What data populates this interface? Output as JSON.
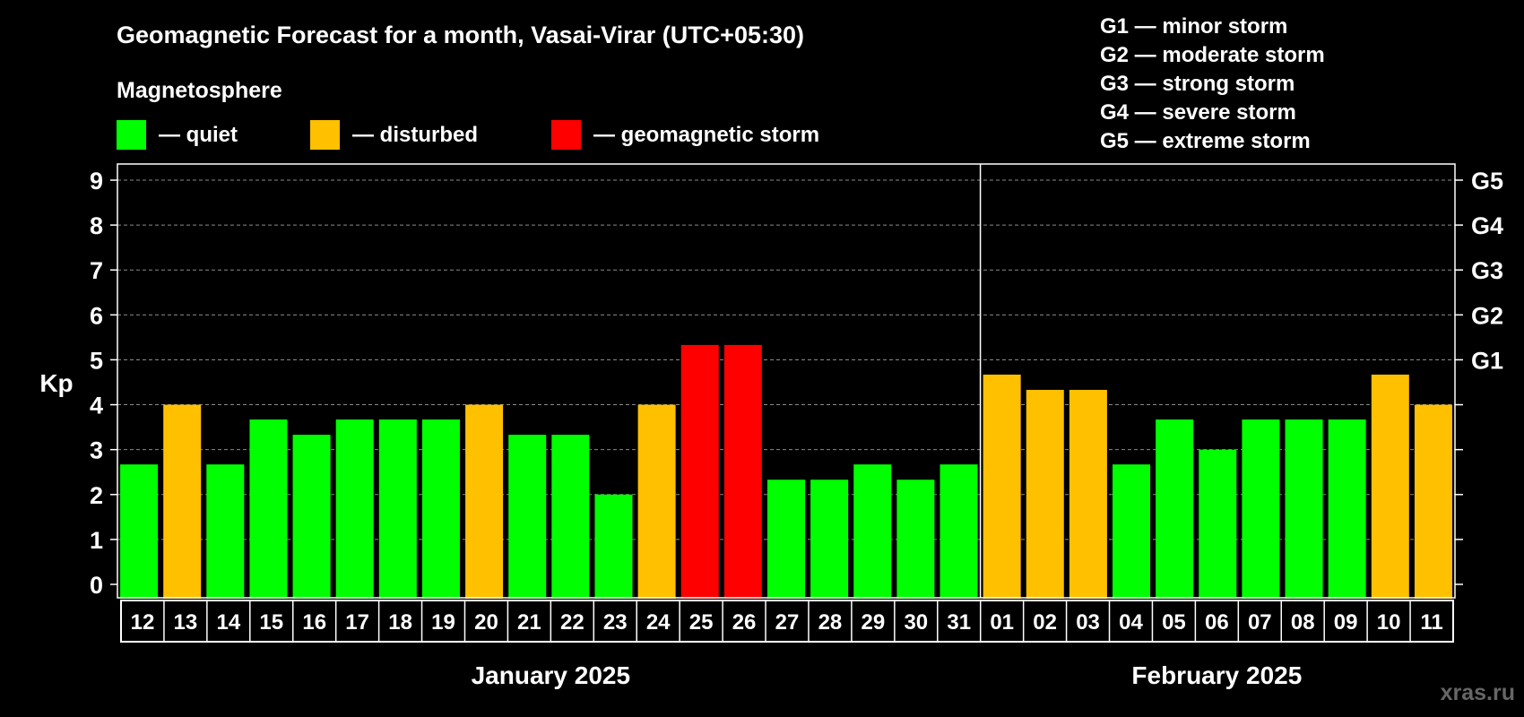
{
  "chart_data": {
    "type": "bar",
    "title": "Geomagnetic Forecast for a month, Vasai-Virar (UTC+05:30)",
    "legend_heading": "Magnetosphere",
    "legend": [
      {
        "label": "— quiet",
        "color": "#00ff00"
      },
      {
        "label": "— disturbed",
        "color": "#ffc000"
      },
      {
        "label": "— geomagnetic storm",
        "color": "#ff0000"
      }
    ],
    "storm_scale": [
      "G1 — minor storm",
      "G2 — moderate storm",
      "G3 — strong storm",
      "G4 — severe storm",
      "G5 — extreme storm"
    ],
    "ylabel": "Kp",
    "ylim": [
      0,
      9
    ],
    "yticks": [
      "0",
      "1",
      "2",
      "3",
      "4",
      "5",
      "6",
      "7",
      "8",
      "9"
    ],
    "right_ticks": [
      {
        "label": "G1",
        "value": 5
      },
      {
        "label": "G2",
        "value": 6
      },
      {
        "label": "G3",
        "value": 7
      },
      {
        "label": "G4",
        "value": 8
      },
      {
        "label": "G5",
        "value": 9
      }
    ],
    "grid": true,
    "categories": [
      "12",
      "13",
      "14",
      "15",
      "16",
      "17",
      "18",
      "19",
      "20",
      "21",
      "22",
      "23",
      "24",
      "25",
      "26",
      "27",
      "28",
      "29",
      "30",
      "31",
      "01",
      "02",
      "03",
      "04",
      "05",
      "06",
      "07",
      "08",
      "09",
      "10",
      "11"
    ],
    "values": [
      2.67,
      4,
      2.67,
      3.67,
      3.33,
      3.67,
      3.67,
      3.67,
      4,
      3.33,
      3.33,
      2,
      4,
      5.33,
      5.33,
      2.33,
      2.33,
      2.67,
      2.33,
      2.67,
      4.67,
      4.33,
      4.33,
      2.67,
      3.67,
      3,
      3.67,
      3.67,
      3.67,
      4.67,
      4
    ],
    "colors": [
      "#00ff00",
      "#ffc000",
      "#00ff00",
      "#00ff00",
      "#00ff00",
      "#00ff00",
      "#00ff00",
      "#00ff00",
      "#ffc000",
      "#00ff00",
      "#00ff00",
      "#00ff00",
      "#ffc000",
      "#ff0000",
      "#ff0000",
      "#00ff00",
      "#00ff00",
      "#00ff00",
      "#00ff00",
      "#00ff00",
      "#ffc000",
      "#ffc000",
      "#ffc000",
      "#00ff00",
      "#00ff00",
      "#00ff00",
      "#00ff00",
      "#00ff00",
      "#00ff00",
      "#ffc000",
      "#ffc000"
    ],
    "months": [
      {
        "label": "January 2025",
        "first": 0,
        "last": 19
      },
      {
        "label": "February 2025",
        "first": 20,
        "last": 30
      }
    ]
  },
  "watermark": "xras.ru"
}
